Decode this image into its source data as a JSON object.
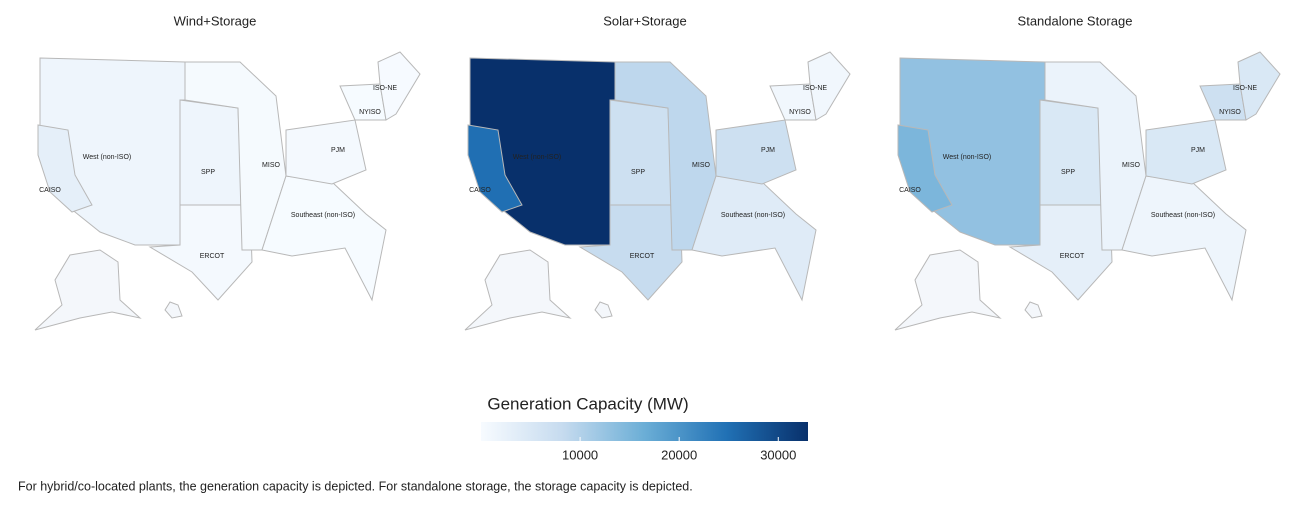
{
  "chart_data": [
    {
      "type": "choropleth",
      "title": "Wind+Storage",
      "categories": [
        "West (non-ISO)",
        "CAISO",
        "SPP",
        "ERCOT",
        "MISO",
        "Southeast (non-ISO)",
        "PJM",
        "NYISO",
        "ISO-NE"
      ],
      "values": [
        1500,
        3000,
        1500,
        500,
        300,
        100,
        500,
        100,
        200
      ]
    },
    {
      "type": "choropleth",
      "title": "Solar+Storage",
      "categories": [
        "West (non-ISO)",
        "CAISO",
        "SPP",
        "ERCOT",
        "MISO",
        "Southeast (non-ISO)",
        "PJM",
        "NYISO",
        "ISO-NE"
      ],
      "values": [
        33000,
        25000,
        7000,
        8000,
        9000,
        4000,
        7000,
        1000,
        1000
      ]
    },
    {
      "type": "choropleth",
      "title": "Standalone Storage",
      "categories": [
        "West (non-ISO)",
        "CAISO",
        "SPP",
        "ERCOT",
        "MISO",
        "Southeast (non-ISO)",
        "PJM",
        "NYISO",
        "ISO-NE"
      ],
      "values": [
        13000,
        15000,
        5000,
        3000,
        2000,
        1500,
        5000,
        7000,
        5000
      ]
    }
  ],
  "colorbar": {
    "title": "Generation Capacity (MW)",
    "lim": [
      0,
      33000
    ],
    "ticks": [
      10000,
      20000,
      30000
    ],
    "colorscale": [
      "#f7fbff",
      "#c6dbef",
      "#6baed6",
      "#2171b5",
      "#08306b"
    ]
  },
  "footnote": "For hybrid/co-located plants, the generation capacity is depicted. For standalone storage, the storage capacity is depicted."
}
